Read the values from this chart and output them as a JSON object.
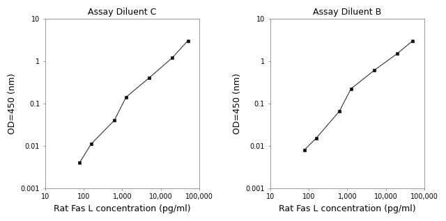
{
  "left_title": "Assay Diluent C",
  "right_title": "Assay Diluent B",
  "xlabel": "Rat Fas L concentration (pg/ml)",
  "ylabel": "OD=450 (nm)",
  "xlim": [
    10,
    100000
  ],
  "ylim": [
    0.001,
    10
  ],
  "left_x": [
    78,
    156,
    625,
    1250,
    5000,
    20000,
    50000
  ],
  "left_y": [
    0.004,
    0.011,
    0.04,
    0.14,
    0.4,
    1.2,
    3.0
  ],
  "right_x": [
    78,
    156,
    625,
    1250,
    5000,
    20000,
    50000
  ],
  "right_y": [
    0.008,
    0.015,
    0.065,
    0.22,
    0.6,
    1.5,
    3.0
  ],
  "line_color": "#333333",
  "marker_color": "#111111",
  "bg_color": "#ffffff",
  "title_fontsize": 9,
  "label_fontsize": 9,
  "tick_fontsize": 7
}
